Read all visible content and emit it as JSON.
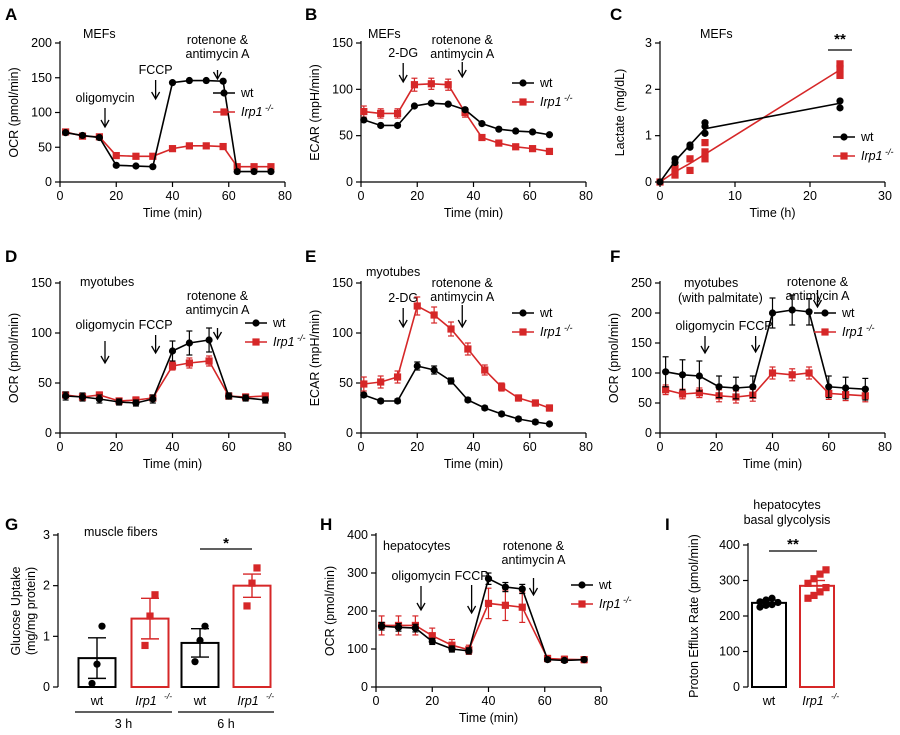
{
  "colors": {
    "wt": "#000000",
    "irp1": "#d62728"
  },
  "chart_data": [
    {
      "id": "A",
      "type": "line",
      "panel_label": "A",
      "annotation": "MEFs",
      "xlabel": "Time (min)",
      "ylabel": "OCR (pmol/min)",
      "xlim": [
        0,
        80
      ],
      "ylim": [
        0,
        200
      ],
      "xticks": [
        0,
        20,
        40,
        60,
        80
      ],
      "yticks": [
        0,
        50,
        100,
        150,
        200
      ],
      "x": [
        2,
        8,
        14,
        20,
        27,
        33,
        40,
        46,
        52,
        58,
        63,
        69,
        75
      ],
      "series": [
        {
          "name": "wt",
          "values": [
            71,
            67,
            64,
            24,
            23,
            22,
            143,
            146,
            146,
            145,
            15,
            15,
            15
          ],
          "err": [
            0,
            0,
            0,
            0,
            0,
            0,
            0,
            0,
            0,
            0,
            0,
            0,
            0
          ]
        },
        {
          "name": "Irp1-/-",
          "values": [
            72,
            66,
            65,
            38,
            37,
            37,
            48,
            52,
            52,
            51,
            22,
            22,
            22
          ],
          "err": [
            0,
            0,
            0,
            0,
            0,
            0,
            0,
            0,
            0,
            0,
            0,
            0,
            0
          ]
        }
      ],
      "legend": {
        "position": "right",
        "wt": "wt",
        "irp1": "Irp1",
        "irp1_sup": "-/-"
      },
      "injections": [
        {
          "label": "oligomycin",
          "x": 16
        },
        {
          "label": "FCCP",
          "x": 34
        },
        {
          "label": "rotenone &",
          "label2": "antimycin A",
          "x": 56
        }
      ]
    },
    {
      "id": "B",
      "type": "line",
      "panel_label": "B",
      "annotation": "MEFs",
      "xlabel": "Time (min)",
      "ylabel": "ECAR (mpH/min)",
      "xlim": [
        0,
        80
      ],
      "ylim": [
        0,
        150
      ],
      "xticks": [
        0,
        20,
        40,
        60,
        80
      ],
      "yticks": [
        0,
        50,
        100,
        150
      ],
      "x": [
        1,
        7,
        13,
        19,
        25,
        31,
        37,
        43,
        49,
        55,
        61,
        67
      ],
      "series": [
        {
          "name": "wt",
          "values": [
            67,
            61,
            61,
            82,
            85,
            84,
            78,
            63,
            57,
            55,
            54,
            51
          ],
          "err": [
            0,
            0,
            0,
            0,
            0,
            0,
            0,
            0,
            0,
            0,
            0,
            0
          ]
        },
        {
          "name": "Irp1-/-",
          "values": [
            76,
            74,
            74,
            105,
            106,
            105,
            75,
            48,
            42,
            38,
            36,
            33
          ],
          "err": [
            6,
            5,
            5,
            7,
            6,
            6,
            5,
            3,
            2,
            2,
            2,
            2
          ]
        }
      ],
      "legend": {
        "position": "right",
        "wt": "wt",
        "irp1": "Irp1",
        "irp1_sup": "-/-"
      },
      "injections": [
        {
          "label": "2-DG",
          "x": 15
        },
        {
          "label": "rotenone &",
          "label2": "antimycin A",
          "x": 36
        }
      ]
    },
    {
      "id": "C",
      "type": "scatter",
      "panel_label": "C",
      "annotation": "MEFs",
      "xlabel": "Time (h)",
      "ylabel": "Lactate (mg/dL)",
      "xlim": [
        0,
        30
      ],
      "ylim": [
        0,
        3
      ],
      "xticks": [
        0,
        10,
        20,
        30
      ],
      "yticks": [
        0,
        1,
        2,
        3
      ],
      "series": [
        {
          "name": "wt",
          "line_x": [
            0,
            2,
            4,
            6,
            24
          ],
          "line_y": [
            0,
            0.45,
            0.8,
            1.15,
            1.7
          ],
          "points": [
            [
              0,
              0
            ],
            [
              2,
              0.42
            ],
            [
              2,
              0.5
            ],
            [
              4,
              0.75
            ],
            [
              4,
              0.8
            ],
            [
              6,
              1.05
            ],
            [
              6,
              1.2
            ],
            [
              6,
              1.28
            ],
            [
              24,
              1.6
            ],
            [
              24,
              1.75
            ]
          ]
        },
        {
          "name": "Irp1-/-",
          "line_x": [
            0,
            2,
            4,
            6,
            24
          ],
          "line_y": [
            0,
            0.22,
            0.4,
            0.6,
            2.42
          ],
          "points": [
            [
              0,
              0
            ],
            [
              2,
              0.15
            ],
            [
              2,
              0.3
            ],
            [
              4,
              0.25
            ],
            [
              4,
              0.5
            ],
            [
              6,
              0.5
            ],
            [
              6,
              0.65
            ],
            [
              6,
              0.85
            ],
            [
              24,
              2.3
            ],
            [
              24,
              2.45
            ],
            [
              24,
              2.55
            ]
          ]
        }
      ],
      "significance": {
        "label": "**",
        "x": 24
      },
      "legend": {
        "position": "right",
        "wt": "wt",
        "irp1": "Irp1",
        "irp1_sup": "-/-"
      }
    },
    {
      "id": "D",
      "type": "line",
      "panel_label": "D",
      "annotation": "myotubes",
      "xlabel": "Time (min)",
      "ylabel": "OCR (pmol/min)",
      "xlim": [
        0,
        80
      ],
      "ylim": [
        0,
        150
      ],
      "xticks": [
        0,
        20,
        40,
        60,
        80
      ],
      "yticks": [
        0,
        50,
        100,
        150
      ],
      "x": [
        2,
        8,
        14,
        21,
        27,
        33,
        40,
        46,
        53,
        60,
        66,
        73
      ],
      "series": [
        {
          "name": "wt",
          "values": [
            37,
            36,
            34,
            31,
            30,
            34,
            82,
            90,
            93,
            37,
            35,
            33
          ],
          "err": [
            4,
            4,
            4,
            3,
            3,
            4,
            10,
            12,
            12,
            3,
            3,
            3
          ]
        },
        {
          "name": "Irp1-/-",
          "values": [
            38,
            36,
            38,
            32,
            33,
            35,
            67,
            70,
            72,
            37,
            36,
            37
          ],
          "err": [
            3,
            3,
            3,
            3,
            3,
            3,
            4,
            5,
            5,
            3,
            3,
            3
          ]
        }
      ],
      "legend": {
        "position": "right",
        "wt": "wt",
        "irp1": "Irp1",
        "irp1_sup": "-/-"
      },
      "injections": [
        {
          "label": "oligomycin",
          "x": 16
        },
        {
          "label": "FCCP",
          "x": 34
        },
        {
          "label": "rotenone &",
          "label2": "antimycin A",
          "x": 56
        }
      ]
    },
    {
      "id": "E",
      "type": "line",
      "panel_label": "E",
      "annotation": "myotubes",
      "xlabel": "Time (min)",
      "ylabel": "ECAR (mpH/min)",
      "xlim": [
        0,
        80
      ],
      "ylim": [
        0,
        150
      ],
      "xticks": [
        0,
        20,
        40,
        60,
        80
      ],
      "yticks": [
        0,
        50,
        100,
        150
      ],
      "x": [
        1,
        7,
        13,
        20,
        26,
        32,
        38,
        44,
        50,
        56,
        62,
        67
      ],
      "series": [
        {
          "name": "wt",
          "values": [
            38,
            32,
            32,
            67,
            63,
            52,
            33,
            25,
            19,
            14,
            11,
            9
          ],
          "err": [
            2,
            2,
            2,
            4,
            4,
            3,
            2,
            2,
            2,
            2,
            2,
            1
          ]
        },
        {
          "name": "Irp1-/-",
          "values": [
            49,
            51,
            56,
            127,
            118,
            104,
            84,
            63,
            46,
            35,
            30,
            25
          ],
          "err": [
            7,
            6,
            6,
            9,
            8,
            7,
            6,
            5,
            4,
            3,
            3,
            3
          ]
        }
      ],
      "legend": {
        "position": "right",
        "wt": "wt",
        "irp1": "Irp1",
        "irp1_sup": "-/-"
      },
      "injections": [
        {
          "label": "2-DG",
          "x": 15
        },
        {
          "label": "rotenone &",
          "label2": "antimycin A",
          "x": 36
        }
      ]
    },
    {
      "id": "F",
      "type": "line",
      "panel_label": "F",
      "annotation": "myotubes",
      "annotation2": "(with palmitate)",
      "xlabel": "Time (min)",
      "ylabel": "OCR (pmol/min)",
      "xlim": [
        0,
        80
      ],
      "ylim": [
        0,
        250
      ],
      "xticks": [
        0,
        20,
        40,
        60,
        80
      ],
      "yticks": [
        0,
        50,
        100,
        150,
        200,
        250
      ],
      "x": [
        2,
        8,
        14,
        21,
        27,
        33,
        40,
        47,
        53,
        60,
        66,
        73
      ],
      "series": [
        {
          "name": "wt",
          "values": [
            102,
            97,
            95,
            77,
            75,
            77,
            200,
            205,
            202,
            77,
            75,
            73
          ],
          "err": [
            25,
            25,
            25,
            18,
            18,
            18,
            25,
            25,
            22,
            18,
            18,
            18
          ]
        },
        {
          "name": "Irp1-/-",
          "values": [
            72,
            65,
            67,
            62,
            60,
            63,
            100,
            97,
            100,
            66,
            64,
            62
          ],
          "err": [
            8,
            8,
            8,
            10,
            10,
            10,
            10,
            10,
            10,
            10,
            10,
            10
          ]
        }
      ],
      "legend": {
        "position": "right",
        "wt": "wt",
        "irp1": "Irp1",
        "irp1_sup": "-/-"
      },
      "injections": [
        {
          "label": "oligomycin",
          "x": 16
        },
        {
          "label": "FCCP",
          "x": 34
        },
        {
          "label": "rotenone &",
          "label2": "antimycin A",
          "x": 56
        }
      ]
    },
    {
      "id": "G",
      "type": "bar",
      "panel_label": "G",
      "annotation": "muscle fibers",
      "ylabel": "Glucose Uptake",
      "ylabel2": "(mg/mg protein)",
      "ylim": [
        0,
        3
      ],
      "yticks": [
        0,
        1,
        2,
        3
      ],
      "groups": [
        {
          "label": "3 h",
          "bars": [
            {
              "genotype": "wt",
              "value": 0.57,
              "err": 0.4,
              "points": [
                0.07,
                0.45,
                1.2
              ]
            },
            {
              "genotype": "Irp1-/-",
              "value": 1.35,
              "err": 0.4,
              "points": [
                0.82,
                1.4,
                1.82
              ]
            }
          ]
        },
        {
          "label": "6 h",
          "bars": [
            {
              "genotype": "wt",
              "value": 0.87,
              "err": 0.28,
              "points": [
                0.5,
                0.92,
                1.2
              ]
            },
            {
              "genotype": "Irp1-/-",
              "value": 2.0,
              "err": 0.23,
              "points": [
                1.6,
                2.05,
                2.35
              ]
            }
          ]
        }
      ],
      "xtick_wt": "wt",
      "xtick_irp1": "Irp1",
      "xtick_irp1_sup": "-/-",
      "significance": {
        "label": "*"
      }
    },
    {
      "id": "H",
      "type": "line",
      "panel_label": "H",
      "annotation": "hepatocytes",
      "xlabel": "Time (min)",
      "ylabel": "OCR (pmol/min)",
      "xlim": [
        0,
        80
      ],
      "ylim": [
        0,
        400
      ],
      "xticks": [
        0,
        20,
        40,
        60,
        80
      ],
      "yticks": [
        0,
        100,
        200,
        300,
        400
      ],
      "x": [
        2,
        8,
        14,
        20,
        27,
        33,
        40,
        46,
        52,
        61,
        67,
        74
      ],
      "series": [
        {
          "name": "wt",
          "values": [
            160,
            157,
            155,
            120,
            100,
            95,
            285,
            263,
            258,
            72,
            70,
            72
          ],
          "err": [
            10,
            10,
            10,
            8,
            8,
            8,
            15,
            12,
            12,
            5,
            5,
            5
          ]
        },
        {
          "name": "Irp1-/-",
          "values": [
            162,
            162,
            162,
            135,
            110,
            98,
            220,
            215,
            210,
            75,
            73,
            72
          ],
          "err": [
            25,
            25,
            25,
            20,
            15,
            12,
            40,
            40,
            40,
            8,
            8,
            8
          ]
        }
      ],
      "legend": {
        "position": "right",
        "wt": "wt",
        "irp1": "Irp1",
        "irp1_sup": "-/-"
      },
      "injections": [
        {
          "label": "oligomycin",
          "x": 16
        },
        {
          "label": "FCCP",
          "x": 34
        },
        {
          "label": "rotenone &",
          "label2": "antimycin A",
          "x": 56
        }
      ]
    },
    {
      "id": "I",
      "type": "bar",
      "panel_label": "I",
      "title": "hepatocytes",
      "title2": "basal glycolysis",
      "ylabel": "Proton Efflux Rate (pmol/min)",
      "ylim": [
        0,
        400
      ],
      "yticks": [
        0,
        100,
        200,
        300,
        400
      ],
      "bars": [
        {
          "genotype": "wt",
          "value": 237,
          "err": 8,
          "points": [
            225,
            230,
            232,
            238,
            240,
            245,
            250
          ]
        },
        {
          "genotype": "Irp1-/-",
          "value": 285,
          "err": 15,
          "points": [
            250,
            258,
            268,
            280,
            292,
            305,
            318,
            330
          ]
        }
      ],
      "xtick_wt": "wt",
      "xtick_irp1": "Irp1",
      "xtick_irp1_sup": "-/-",
      "significance": {
        "label": "**"
      }
    }
  ]
}
